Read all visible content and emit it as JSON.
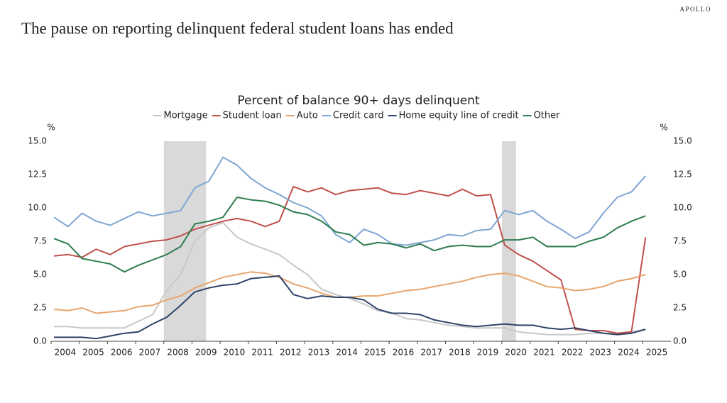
{
  "header": {
    "title": "The pause on reporting delinquent federal student loans has ended",
    "brand": "APOLLO"
  },
  "chart_data": {
    "type": "line",
    "title": "Percent of balance 90+ days delinquent",
    "y_unit": "%",
    "y2_unit": "%",
    "x": [
      2004.1,
      2004.6,
      2005.1,
      2005.6,
      2006.1,
      2006.6,
      2007.1,
      2007.6,
      2008.1,
      2008.6,
      2009.1,
      2009.6,
      2010.1,
      2010.6,
      2011.1,
      2011.6,
      2012.1,
      2012.6,
      2013.1,
      2013.6,
      2014.1,
      2014.6,
      2015.1,
      2015.6,
      2016.1,
      2016.6,
      2017.1,
      2017.6,
      2018.1,
      2018.6,
      2019.1,
      2019.6,
      2020.1,
      2020.6,
      2021.1,
      2021.6,
      2022.1,
      2022.6,
      2023.1,
      2023.6,
      2024.1,
      2024.6,
      2025.1
    ],
    "xlim": [
      2004,
      2026
    ],
    "xticks": [
      {
        "value": 2004.5,
        "label": "2004"
      },
      {
        "value": 2005.5,
        "label": "2005"
      },
      {
        "value": 2006.5,
        "label": "2006"
      },
      {
        "value": 2007.5,
        "label": "2007"
      },
      {
        "value": 2008.5,
        "label": "2008"
      },
      {
        "value": 2009.5,
        "label": "2009"
      },
      {
        "value": 2010.5,
        "label": "2010"
      },
      {
        "value": 2011.5,
        "label": "2011"
      },
      {
        "value": 2012.5,
        "label": "2012"
      },
      {
        "value": 2013.5,
        "label": "2013"
      },
      {
        "value": 2014.5,
        "label": "2014"
      },
      {
        "value": 2015.5,
        "label": "2015"
      },
      {
        "value": 2016.5,
        "label": "2016"
      },
      {
        "value": 2017.5,
        "label": "2017"
      },
      {
        "value": 2018.5,
        "label": "2018"
      },
      {
        "value": 2019.5,
        "label": "2019"
      },
      {
        "value": 2020.5,
        "label": "2020"
      },
      {
        "value": 2021.5,
        "label": "2021"
      },
      {
        "value": 2022.5,
        "label": "2022"
      },
      {
        "value": 2023.5,
        "label": "2023"
      },
      {
        "value": 2024.5,
        "label": "2024"
      },
      {
        "value": 2025.5,
        "label": "2025"
      }
    ],
    "ylim": [
      0,
      15
    ],
    "yticks": [
      {
        "value": 0,
        "label": "0.0"
      },
      {
        "value": 2.5,
        "label": "2.5"
      },
      {
        "value": 5,
        "label": "5.0"
      },
      {
        "value": 7.5,
        "label": "7.5"
      },
      {
        "value": 10,
        "label": "10.0"
      },
      {
        "value": 12.5,
        "label": "12.5"
      },
      {
        "value": 15,
        "label": "15.0"
      }
    ],
    "y2lim": [
      0,
      15
    ],
    "y2ticks": [
      {
        "value": 0,
        "label": "0.0"
      },
      {
        "value": 2.5,
        "label": "2.5"
      },
      {
        "value": 5,
        "label": "5.0"
      },
      {
        "value": 7.5,
        "label": "7.5"
      },
      {
        "value": 10,
        "label": "10.0"
      },
      {
        "value": 12.5,
        "label": "12.5"
      },
      {
        "value": 15,
        "label": "15.0"
      }
    ],
    "recessions": [
      [
        2008,
        2009.5
      ],
      [
        2020,
        2020.5
      ]
    ],
    "recession_color": "#d9d9d9",
    "grid": false,
    "series": [
      {
        "name": "Mortgage",
        "color": "#c8c8c8",
        "values": [
          1.1,
          1.1,
          1.0,
          1.0,
          1.0,
          1.0,
          1.5,
          2.0,
          3.8,
          5.0,
          7.5,
          8.5,
          8.9,
          7.8,
          7.3,
          6.9,
          6.5,
          5.7,
          5.0,
          3.9,
          3.5,
          3.2,
          2.8,
          2.3,
          2.1,
          1.7,
          1.6,
          1.4,
          1.2,
          1.1,
          1.0,
          1.0,
          1.0,
          0.7,
          0.6,
          0.5,
          0.5,
          0.5,
          0.6,
          0.6,
          0.6,
          0.7,
          0.9
        ]
      },
      {
        "name": "Student loan",
        "color": "#c0504d",
        "values": [
          6.4,
          6.5,
          6.3,
          6.9,
          6.5,
          7.1,
          7.3,
          7.5,
          7.6,
          7.9,
          8.4,
          8.7,
          9.0,
          9.2,
          9.0,
          8.6,
          9.0,
          11.6,
          11.2,
          11.5,
          11.0,
          11.3,
          11.4,
          11.5,
          11.1,
          11.0,
          11.3,
          11.1,
          10.9,
          11.4,
          10.9,
          11.0,
          7.2,
          6.5,
          6.0,
          5.3,
          4.6,
          0.9,
          0.8,
          0.8,
          0.6,
          0.7,
          7.8
        ]
      },
      {
        "name": "Auto",
        "color": "#e8a46c",
        "values": [
          2.4,
          2.3,
          2.5,
          2.1,
          2.2,
          2.3,
          2.6,
          2.7,
          3.1,
          3.4,
          4.0,
          4.4,
          4.8,
          5.0,
          5.2,
          5.1,
          4.8,
          4.3,
          4.0,
          3.6,
          3.3,
          3.3,
          3.4,
          3.4,
          3.6,
          3.8,
          3.9,
          4.1,
          4.3,
          4.5,
          4.8,
          5.0,
          5.1,
          4.9,
          4.5,
          4.1,
          4.0,
          3.8,
          3.9,
          4.1,
          4.5,
          4.7,
          5.0
        ]
      },
      {
        "name": "Credit card",
        "color": "#7ea6d3",
        "values": [
          9.3,
          8.6,
          9.6,
          9.0,
          8.7,
          9.2,
          9.7,
          9.4,
          9.6,
          9.8,
          11.5,
          12.0,
          13.8,
          13.2,
          12.2,
          11.5,
          11.0,
          10.4,
          10.0,
          9.4,
          8.0,
          7.4,
          8.4,
          8.0,
          7.3,
          7.2,
          7.4,
          7.6,
          8.0,
          7.9,
          8.3,
          8.4,
          9.8,
          9.5,
          9.8,
          9.0,
          8.4,
          7.7,
          8.2,
          9.6,
          10.8,
          11.2,
          12.4
        ]
      },
      {
        "name": "Home equity line of credit",
        "color": "#2e4468",
        "values": [
          0.3,
          0.3,
          0.3,
          0.2,
          0.4,
          0.6,
          0.7,
          1.3,
          1.8,
          2.7,
          3.7,
          4.0,
          4.2,
          4.3,
          4.7,
          4.8,
          4.9,
          3.5,
          3.2,
          3.4,
          3.3,
          3.3,
          3.1,
          2.4,
          2.1,
          2.1,
          2.0,
          1.6,
          1.4,
          1.2,
          1.1,
          1.2,
          1.3,
          1.2,
          1.2,
          1.0,
          0.9,
          1.0,
          0.8,
          0.6,
          0.5,
          0.6,
          0.9
        ]
      },
      {
        "name": "Other",
        "color": "#2e7d4f",
        "values": [
          7.7,
          7.3,
          6.2,
          6.0,
          5.8,
          5.2,
          5.7,
          6.1,
          6.5,
          7.1,
          8.8,
          9.0,
          9.3,
          10.8,
          10.6,
          10.5,
          10.2,
          9.7,
          9.5,
          9.0,
          8.2,
          8.0,
          7.2,
          7.4,
          7.3,
          7.0,
          7.3,
          6.8,
          7.1,
          7.2,
          7.1,
          7.1,
          7.6,
          7.6,
          7.8,
          7.1,
          7.1,
          7.1,
          7.5,
          7.8,
          8.5,
          9.0,
          9.4
        ]
      }
    ]
  }
}
